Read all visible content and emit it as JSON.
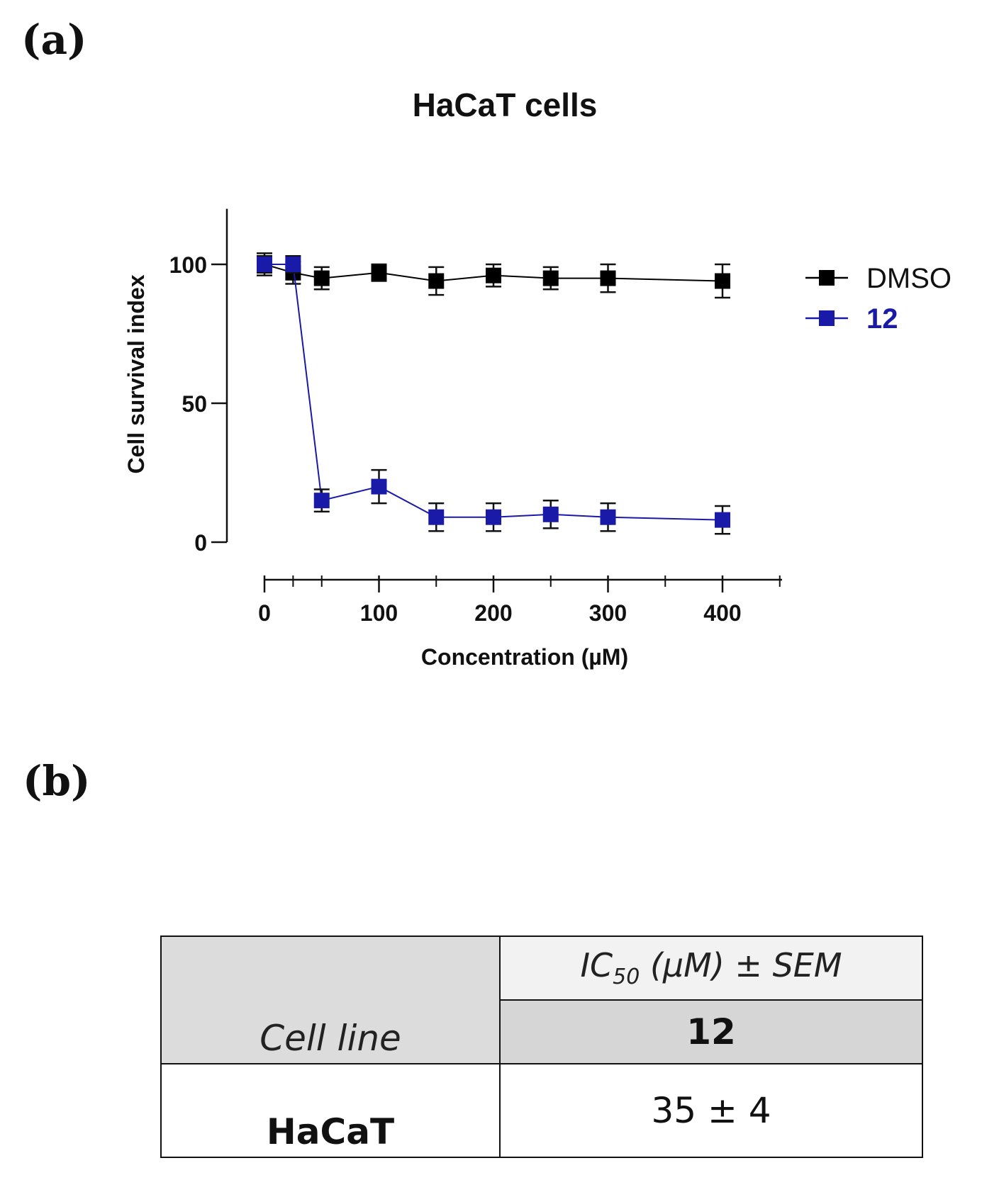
{
  "panels": {
    "a": "(a)",
    "b": "(b)"
  },
  "chart_data": {
    "type": "line",
    "title": "HaCaT cells",
    "xlabel": "Concentration (µM)",
    "ylabel": "Cell survival index",
    "xlim": [
      -15,
      450
    ],
    "ylim": [
      0,
      120
    ],
    "xticks": [
      0,
      100,
      200,
      300,
      400
    ],
    "xminor": [
      25,
      50,
      150,
      250,
      350,
      450
    ],
    "yticks": [
      0,
      50,
      100
    ],
    "legend_position": "right",
    "series": [
      {
        "name": "DMSO",
        "color": "#000000",
        "x": [
          0,
          25,
          50,
          100,
          150,
          200,
          250,
          300,
          400
        ],
        "y": [
          100,
          97,
          95,
          97,
          94,
          96,
          95,
          95,
          94
        ],
        "err": [
          4,
          4,
          4,
          3,
          5,
          4,
          4,
          5,
          6
        ]
      },
      {
        "name": "12",
        "color": "#1a1aa8",
        "x": [
          0,
          25,
          50,
          100,
          150,
          200,
          250,
          300,
          400
        ],
        "y": [
          100,
          100,
          15,
          20,
          9,
          9,
          10,
          9,
          8
        ],
        "err": [
          3,
          3,
          4,
          6,
          5,
          5,
          5,
          5,
          5
        ]
      }
    ]
  },
  "table": {
    "header_left": "Cell line",
    "header_ic": "IC",
    "header_ic_sub": "50",
    "header_ic_rest": " (μM) ± SEM",
    "compound": "12",
    "row_label": "HaCaT",
    "row_value": "35 ± 4"
  }
}
